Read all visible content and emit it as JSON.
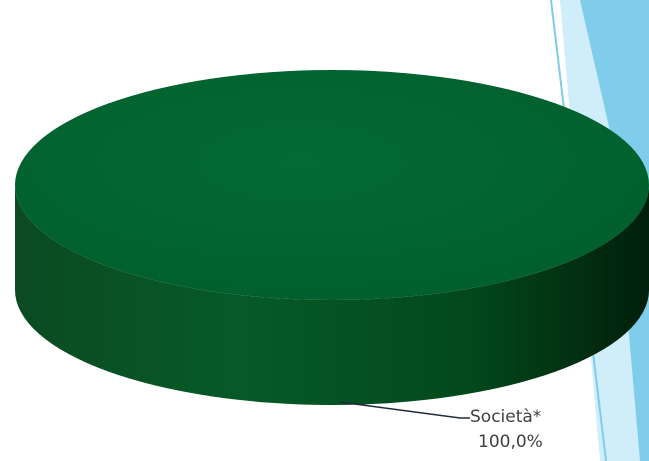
{
  "chart_data": {
    "type": "pie",
    "style": "3d",
    "title": "",
    "legend": "none",
    "slices": [
      {
        "label": "Società*",
        "value": 100.0,
        "percent_label": "100,0%",
        "color": "#006633"
      }
    ]
  },
  "colors": {
    "slice_top": "#006633",
    "slice_side_dark": "#013514",
    "slice_side_mid": "#025a24",
    "decor_light_blue": "#cdeefa",
    "decor_bright_blue": "#7ecbea",
    "leader_line": "#1f2a3a"
  }
}
